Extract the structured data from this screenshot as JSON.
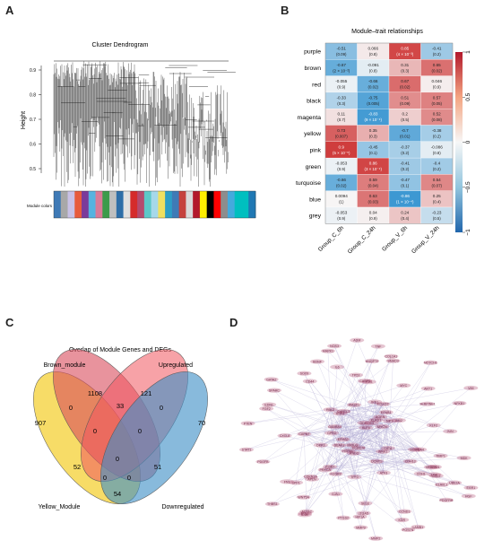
{
  "panels": {
    "a": {
      "letter": "A",
      "title": "Cluster Dendrogram",
      "ylabel": "Height",
      "yticks": [
        "0.9",
        "0.8",
        "0.7",
        "0.6",
        "0.5"
      ],
      "colorbar_label": "Module colors",
      "colorbar_colors": [
        "#3f7ab6",
        "#a8a8a8",
        "#c9c1e6",
        "#e75b3d",
        "#7b3b9a",
        "#55b3e0",
        "#d97a98",
        "#3c9b4a",
        "#bfbfbf",
        "#2e6ea8",
        "#e0e0e0",
        "#d52b2b",
        "#b54a6e",
        "#5cc8c8",
        "#a6d8ea",
        "#f0e060",
        "#2c9ec6",
        "#3f7ab6",
        "#c5413d",
        "#d9d9d9",
        "#b2182b",
        "#ffee00",
        "#000000",
        "#ff0000",
        "#8d8d8d",
        "#44aadd",
        "#00bfbf",
        "#00bfbf",
        "#1f78b4"
      ]
    },
    "b": {
      "letter": "B",
      "title": "Module–trait relationships",
      "legend_ticks": [
        "1",
        "0.5",
        "0",
        "−0.5",
        "−1"
      ]
    },
    "c": {
      "letter": "C",
      "title": "Overlap of Module Genes and DEGs",
      "sets": [
        {
          "label": "Brown_module",
          "color": "#d94b5c"
        },
        {
          "label": "Upregulated",
          "color": "#f0555f"
        },
        {
          "label": "Yellow_Module",
          "color": "#f5d23c"
        },
        {
          "label": "Downregulated",
          "color": "#3f8fc6"
        }
      ],
      "counts": {
        "yellow_only": "907",
        "brown_only": "1108",
        "up_only": "121",
        "down_only": "70",
        "brown_up": "33",
        "yellow_brown": "0",
        "up_down": "0",
        "yellow_up": "52",
        "brown_down": "51",
        "yellow_down": "54",
        "yellow_brown_up": "0",
        "brown_up_down": "0",
        "all_four": "0",
        "yellow_brown_down": "0",
        "yellow_up_down": "0"
      }
    },
    "d": {
      "letter": "D",
      "node_color": "#b45a7c",
      "edge_color": "#b8b2d8",
      "nodes": [
        "ABI2",
        "WNK1",
        "DDR1",
        "RND3",
        "FCGR2",
        "EFNB1",
        "CAPN7",
        "DEAF1",
        "GABRA4",
        "C3",
        "KLF4",
        "CCDC76",
        "GPR3",
        "ANK3",
        "ITGB7",
        "SCRIB",
        "FASLG",
        "CDH13",
        "RBL2",
        "PRKCA",
        "IRS1",
        "CARTL1",
        "MYCN",
        "FOXO3",
        "DKK3",
        "TFF3",
        "EPHA2",
        "HSPA1",
        "NPY",
        "DCNT1",
        "WASF1",
        "PCA4",
        "ATF3",
        "KLRD1",
        "CIITA",
        "AGRN",
        "MDK",
        "GJA1",
        "STAT1",
        "BDNF",
        "ELAVL1",
        "PDGFB",
        "HGF",
        "TNF",
        "UBE2A",
        "GATA2",
        "SOX9",
        "IL6",
        "FGF2",
        "EGR1",
        "CD44",
        "PTGS2",
        "SPP1",
        "MMP9",
        "CDH1",
        "VIM",
        "NOTCH1",
        "WNT5A",
        "JUN",
        "FOS",
        "CDKN1A",
        "NFKB1",
        "IL1B",
        "CXCL8",
        "CCL2",
        "SERPINE1",
        "TGFB1",
        "SMAD3",
        "COL1A1",
        "FN1",
        "THBS1",
        "ACTA2",
        "MYC",
        "CCND1",
        "AKT1",
        "MAPK1",
        "PTEN",
        "TP53",
        "BCL2",
        "CASP3",
        "HIF1A",
        "VEGFA",
        "KDR",
        "ANGPT2",
        "ITGA5",
        "LAMB1",
        "SPARC",
        "POSTN",
        "TIMP1",
        "LOX",
        "MMP2",
        "PDGFRB",
        "EDN1",
        "NOS3",
        "ADM",
        "APLN",
        "KLF2",
        "SELE"
      ]
    }
  }
}
